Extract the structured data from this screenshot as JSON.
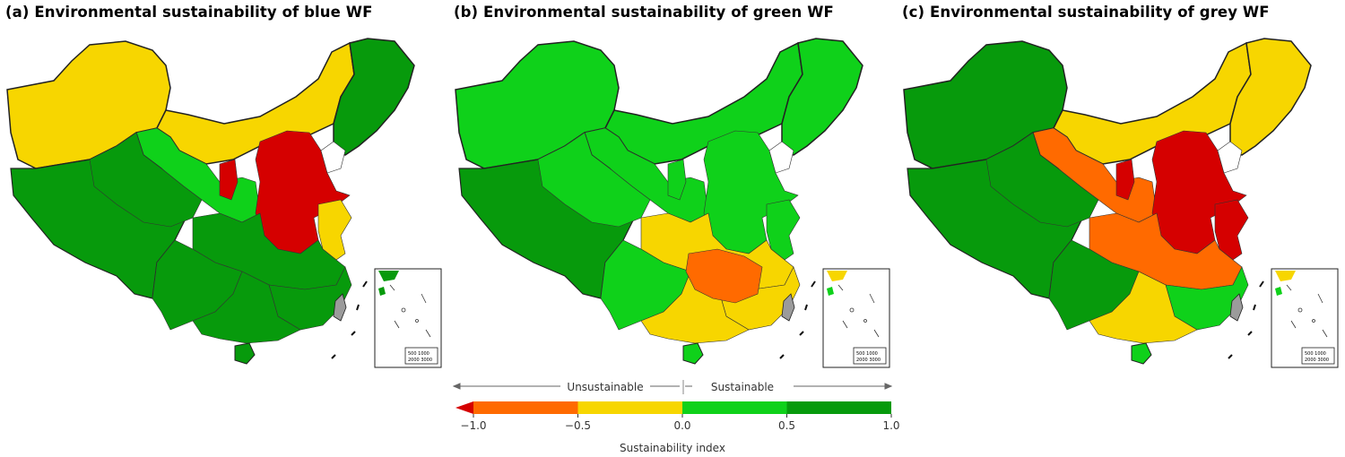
{
  "colors": {
    "red": "#d50000",
    "orange": "#ff6a00",
    "yellow": "#f7d600",
    "light_green": "#0fd11a",
    "dark_green": "#079a0c",
    "taiwan_gray": "#9b9b9b"
  },
  "panels": [
    {
      "title": "(a) Environmental sustainability of blue WF"
    },
    {
      "title": "(b) Environmental sustainability of green WF"
    },
    {
      "title": "(c) Environmental sustainability of grey WF"
    }
  ],
  "inset": {
    "scale_line1": "500 1000",
    "scale_line2": "2000 3000"
  },
  "legend": {
    "unsustainable_label": "Unsustainable",
    "sustainable_label": "Sustainable",
    "axis_label": "Sustainability index",
    "ticks": [
      "−1.0",
      "−0.5",
      "0.0",
      "0.5",
      "1.0"
    ],
    "tick_values": [
      -1.0,
      -0.5,
      0.0,
      0.5,
      1.0
    ],
    "bins": [
      {
        "from": -1.0,
        "to": -0.5,
        "color": "#ff6a00"
      },
      {
        "from": -0.5,
        "to": 0.0,
        "color": "#f7d600"
      },
      {
        "from": 0.0,
        "to": 0.5,
        "color": "#0fd11a"
      },
      {
        "from": 0.5,
        "to": 1.0,
        "color": "#079a0c"
      }
    ],
    "underflow_color": "#d50000"
  },
  "region_colors": {
    "blue": {
      "northwest": "yellow",
      "north_band": "yellow",
      "northeast": "dark_green",
      "gansu_strip": "light_green",
      "ningxia": "red",
      "north_china_plain": "red",
      "shandong_coast": "yellow",
      "tibet": "dark_green",
      "qinghai": "dark_green",
      "southwest": "dark_green",
      "central": "dark_green",
      "southeast": "dark_green",
      "south": "dark_green",
      "hainan": "dark_green"
    },
    "green": {
      "northwest": "light_green",
      "north_band": "light_green",
      "northeast": "light_green",
      "gansu_strip": "light_green",
      "ningxia": "light_green",
      "north_china_plain": "light_green",
      "shandong_coast": "light_green",
      "tibet": "dark_green",
      "qinghai": "light_green",
      "southwest": "light_green",
      "central": "yellow",
      "southeast": "yellow",
      "south": "yellow",
      "hunan_jiangxi": "orange",
      "hainan": "light_green"
    },
    "grey": {
      "northwest": "dark_green",
      "north_band": "yellow",
      "northeast": "yellow",
      "gansu_strip": "orange",
      "ningxia": "red",
      "north_china_plain": "red",
      "shandong_coast": "red",
      "tibet": "dark_green",
      "qinghai": "dark_green",
      "southwest": "dark_green",
      "central": "orange",
      "southeast": "light_green",
      "south": "yellow",
      "hainan": "light_green"
    }
  }
}
